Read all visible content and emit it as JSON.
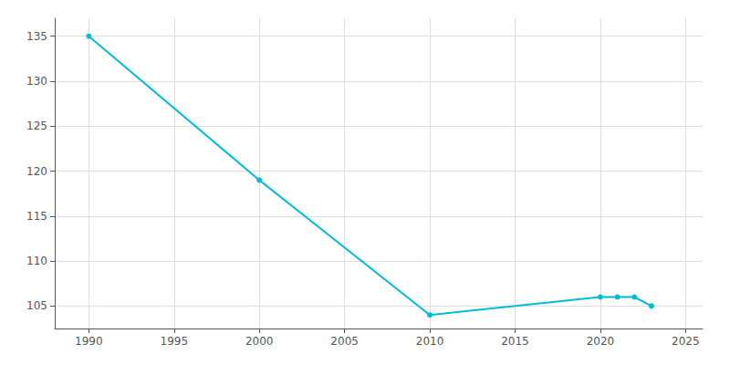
{
  "chart_data": {
    "type": "line",
    "x": [
      1990,
      2000,
      2010,
      2020,
      2021,
      2022,
      2023
    ],
    "values": [
      135,
      119,
      104,
      106,
      106,
      106,
      105
    ],
    "color": "#00bcd4",
    "marker": "circle",
    "xlim": [
      1988,
      2026
    ],
    "ylim": [
      102.5,
      137
    ],
    "xticks": [
      1990,
      1995,
      2000,
      2005,
      2010,
      2015,
      2020,
      2025
    ],
    "yticks": [
      105,
      110,
      115,
      120,
      125,
      130,
      135
    ],
    "grid": true
  }
}
